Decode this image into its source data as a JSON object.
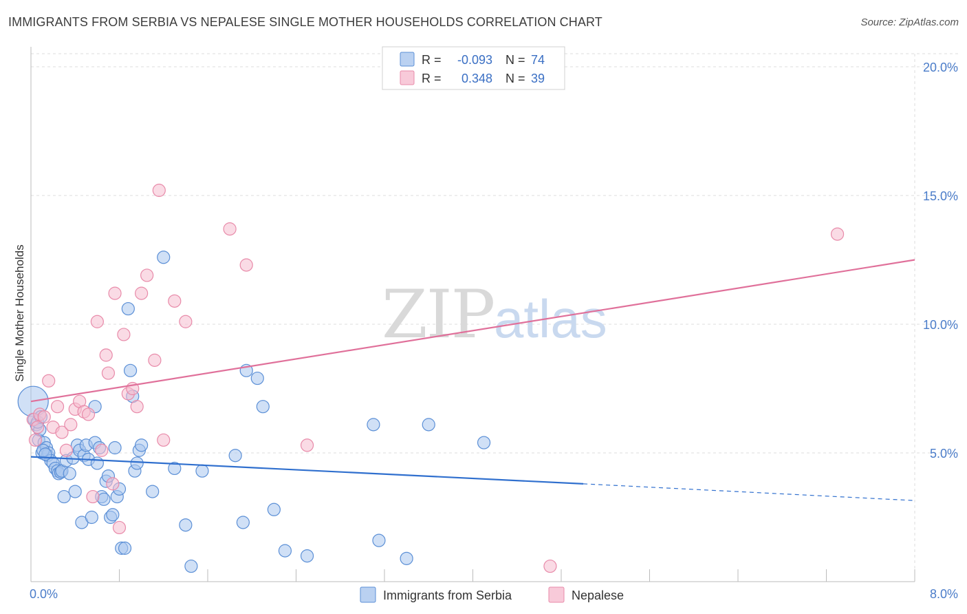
{
  "header": {
    "title": "IMMIGRANTS FROM SERBIA VS NEPALESE SINGLE MOTHER HOUSEHOLDS CORRELATION CHART",
    "source": "Source: ZipAtlas.com"
  },
  "watermark": {
    "zip": "ZIP",
    "atlas": "atlas"
  },
  "colors": {
    "serbia_fill": "#a9c6ee",
    "serbia_stroke": "#5b8fd6",
    "serbia_line": "#2f6fce",
    "nepalese_fill": "#f6bdd0",
    "nepalese_stroke": "#e88aa9",
    "nepalese_line": "#e0709a",
    "grid": "#dddddd",
    "tick_label": "#4a7cc9"
  },
  "legend": {
    "rows": [
      {
        "r_label": "R =",
        "r_value": "-0.093",
        "n_label": "N =",
        "n_value": "74"
      },
      {
        "r_label": "R =",
        "r_value": "0.348",
        "n_label": "N =",
        "n_value": "39"
      }
    ]
  },
  "chart_data": {
    "type": "scatter",
    "title": "IMMIGRANTS FROM SERBIA VS NEPALESE SINGLE MOTHER HOUSEHOLDS CORRELATION CHART",
    "xlabel": "",
    "ylabel": "Single Mother Households",
    "xlim": [
      0,
      8
    ],
    "ylim": [
      0,
      20
    ],
    "x_tick_labels": [
      "0.0%",
      "8.0%"
    ],
    "y_ticks": [
      5,
      10,
      15,
      20
    ],
    "y_tick_labels": [
      "5.0%",
      "10.0%",
      "15.0%",
      "20.0%"
    ],
    "grid": true,
    "legend_position": "top-center",
    "series": [
      {
        "name": "Immigrants from Serbia",
        "R": -0.093,
        "N": 74,
        "trend": {
          "x0": 0,
          "y0": 4.85,
          "x1": 5.0,
          "y1": 3.8,
          "dashed_to_x": 8.0,
          "dashed_to_y": 3.15
        },
        "points": [
          [
            0.02,
            7.0
          ],
          [
            0.03,
            6.3
          ],
          [
            0.05,
            6.1
          ],
          [
            0.07,
            5.5
          ],
          [
            0.08,
            5.9
          ],
          [
            0.1,
            5.0
          ],
          [
            0.12,
            5.4
          ],
          [
            0.14,
            5.2
          ],
          [
            0.15,
            4.9
          ],
          [
            0.16,
            5.0
          ],
          [
            0.18,
            4.7
          ],
          [
            0.2,
            4.6
          ],
          [
            0.22,
            4.4
          ],
          [
            0.24,
            4.3
          ],
          [
            0.25,
            4.2
          ],
          [
            0.27,
            4.25
          ],
          [
            0.28,
            4.3
          ],
          [
            0.3,
            3.3
          ],
          [
            0.32,
            4.7
          ],
          [
            0.35,
            4.2
          ],
          [
            0.38,
            4.8
          ],
          [
            0.4,
            3.5
          ],
          [
            0.42,
            5.3
          ],
          [
            0.44,
            5.1
          ],
          [
            0.46,
            2.3
          ],
          [
            0.48,
            4.9
          ],
          [
            0.5,
            5.3
          ],
          [
            0.52,
            4.75
          ],
          [
            0.55,
            2.5
          ],
          [
            0.58,
            5.4
          ],
          [
            0.6,
            4.6
          ],
          [
            0.62,
            5.2
          ],
          [
            0.64,
            3.3
          ],
          [
            0.66,
            3.2
          ],
          [
            0.68,
            3.9
          ],
          [
            0.7,
            4.1
          ],
          [
            0.72,
            2.5
          ],
          [
            0.74,
            2.6
          ],
          [
            0.76,
            5.2
          ],
          [
            0.78,
            3.3
          ],
          [
            0.8,
            3.6
          ],
          [
            0.82,
            1.3
          ],
          [
            0.85,
            1.3
          ],
          [
            0.88,
            10.6
          ],
          [
            0.9,
            8.2
          ],
          [
            0.92,
            7.2
          ],
          [
            0.94,
            4.3
          ],
          [
            0.96,
            4.6
          ],
          [
            0.98,
            5.1
          ],
          [
            1.0,
            5.3
          ],
          [
            1.1,
            3.5
          ],
          [
            1.2,
            12.6
          ],
          [
            1.3,
            4.4
          ],
          [
            1.4,
            2.2
          ],
          [
            1.45,
            0.6
          ],
          [
            1.55,
            4.3
          ],
          [
            1.85,
            4.9
          ],
          [
            1.92,
            2.3
          ],
          [
            1.95,
            8.2
          ],
          [
            2.05,
            7.9
          ],
          [
            2.1,
            6.8
          ],
          [
            2.2,
            2.8
          ],
          [
            2.3,
            1.2
          ],
          [
            2.5,
            1.0
          ],
          [
            3.1,
            6.1
          ],
          [
            3.15,
            1.6
          ],
          [
            3.4,
            0.9
          ],
          [
            3.6,
            6.1
          ],
          [
            4.1,
            5.4
          ],
          [
            0.06,
            6.2
          ],
          [
            0.09,
            6.4
          ],
          [
            0.11,
            5.1
          ],
          [
            0.13,
            4.95
          ],
          [
            0.58,
            6.8
          ]
        ]
      },
      {
        "name": "Nepalese",
        "R": 0.348,
        "N": 39,
        "trend": {
          "x0": 0,
          "y0": 7.0,
          "x1": 8.0,
          "y1": 12.5
        },
        "points": [
          [
            0.02,
            6.3
          ],
          [
            0.04,
            5.5
          ],
          [
            0.06,
            6.0
          ],
          [
            0.08,
            6.5
          ],
          [
            0.12,
            6.4
          ],
          [
            0.16,
            7.8
          ],
          [
            0.2,
            6.0
          ],
          [
            0.24,
            6.8
          ],
          [
            0.28,
            5.8
          ],
          [
            0.32,
            5.1
          ],
          [
            0.36,
            6.1
          ],
          [
            0.4,
            6.7
          ],
          [
            0.44,
            7.0
          ],
          [
            0.48,
            6.6
          ],
          [
            0.52,
            6.5
          ],
          [
            0.56,
            3.3
          ],
          [
            0.6,
            10.1
          ],
          [
            0.64,
            5.1
          ],
          [
            0.68,
            8.8
          ],
          [
            0.7,
            8.1
          ],
          [
            0.74,
            3.8
          ],
          [
            0.76,
            11.2
          ],
          [
            0.8,
            2.1
          ],
          [
            0.84,
            9.6
          ],
          [
            0.88,
            7.3
          ],
          [
            0.92,
            7.5
          ],
          [
            0.96,
            6.8
          ],
          [
            1.0,
            11.2
          ],
          [
            1.05,
            11.9
          ],
          [
            1.12,
            8.6
          ],
          [
            1.16,
            15.2
          ],
          [
            1.2,
            5.5
          ],
          [
            1.3,
            10.9
          ],
          [
            1.4,
            10.1
          ],
          [
            1.8,
            13.7
          ],
          [
            1.95,
            12.3
          ],
          [
            2.5,
            5.3
          ],
          [
            4.7,
            0.6
          ],
          [
            7.3,
            13.5
          ]
        ]
      }
    ]
  },
  "bottom_legend": {
    "items": [
      {
        "label": "Immigrants from Serbia"
      },
      {
        "label": "Nepalese"
      }
    ]
  }
}
